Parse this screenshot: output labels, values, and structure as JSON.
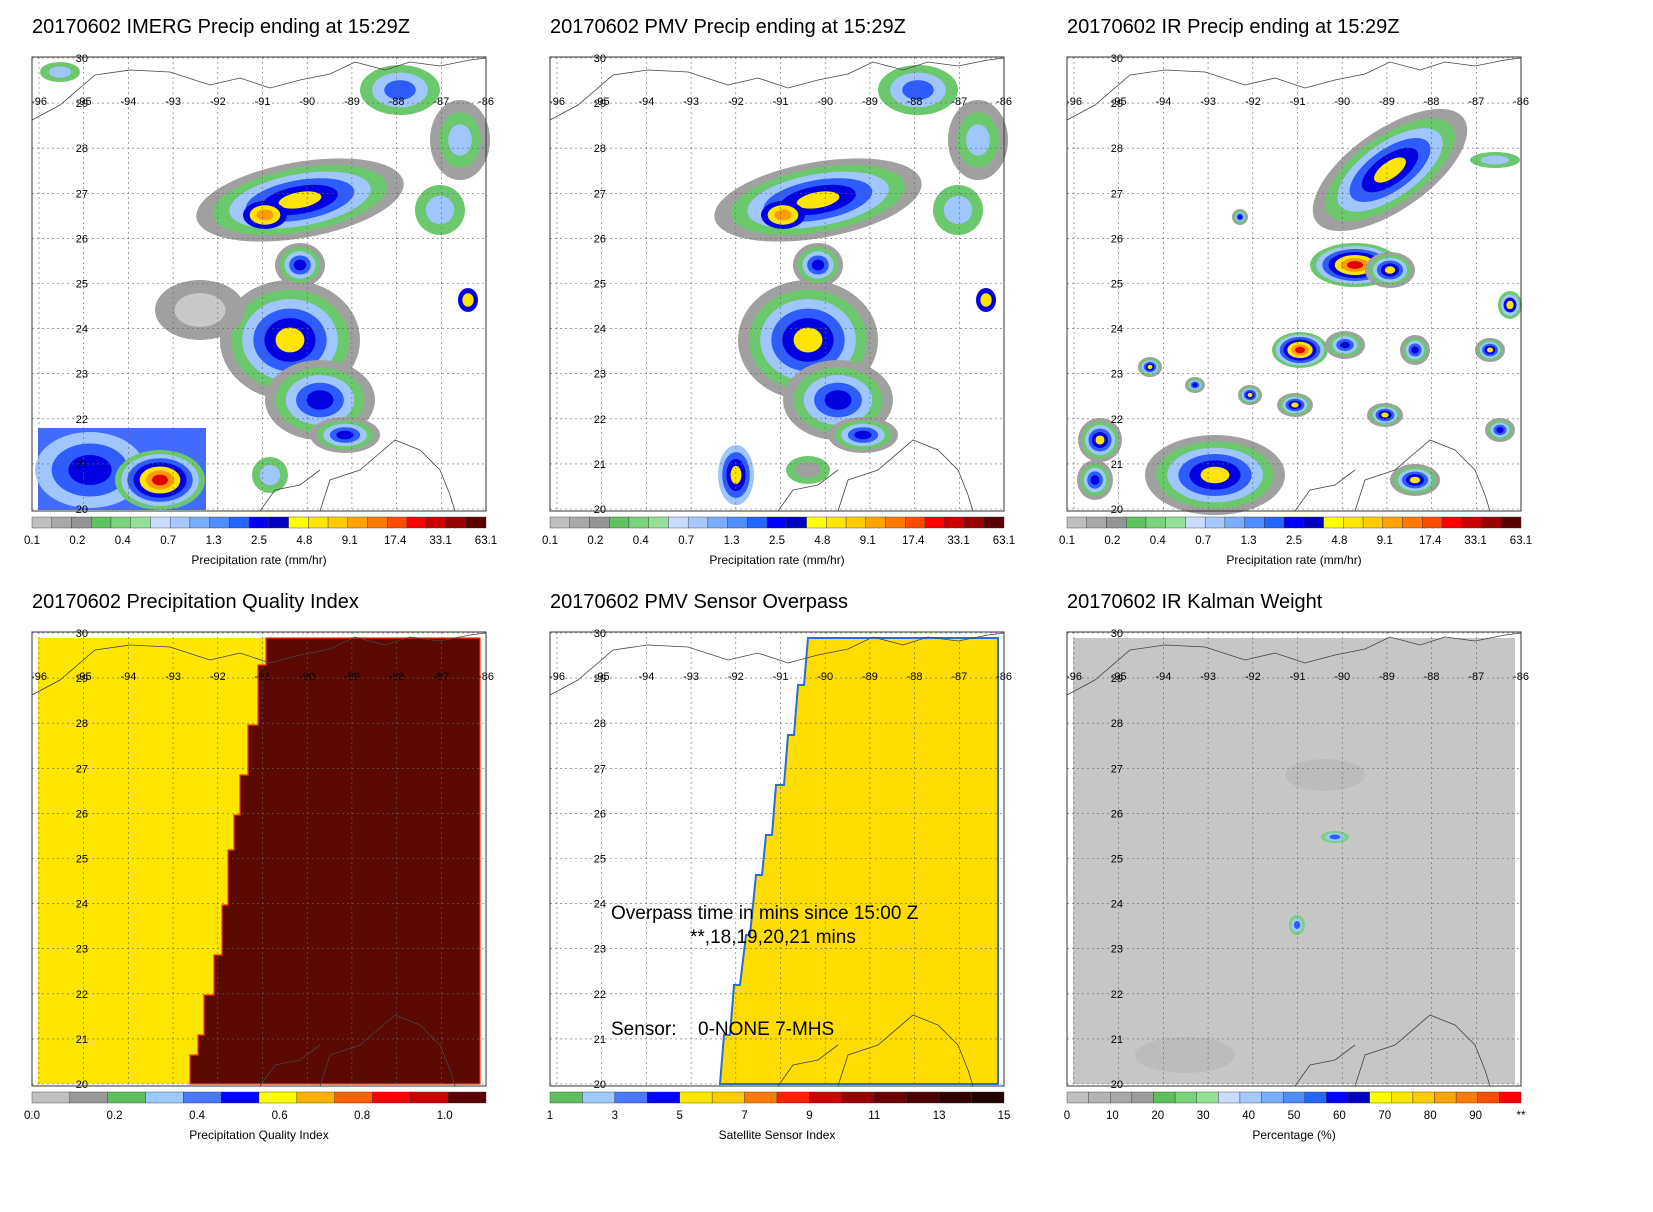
{
  "colors": {
    "precip_scale": [
      "#bfbfbf",
      "#a8a8a8",
      "#959595",
      "#5fc45f",
      "#7ad27a",
      "#94e094",
      "#c8dcff",
      "#a6c8ff",
      "#7aacff",
      "#4f8dff",
      "#2464ff",
      "#0000ff",
      "#0000c0",
      "#ffff00",
      "#ffe600",
      "#ffcc00",
      "#ffa300",
      "#ff7a00",
      "#ff4d00",
      "#ff0000",
      "#cc0000",
      "#990000",
      "#5a0000"
    ],
    "quality_scale": [
      "#c0c0c0",
      "#999999",
      "#5fbf5f",
      "#9ec9ff",
      "#4a78ff",
      "#0000ff",
      "#ffff00",
      "#ffb000",
      "#ff6000",
      "#ff0000",
      "#cc0000",
      "#5a0000"
    ],
    "sensor_scale": [
      "#5fbf5f",
      "#9ec9ff",
      "#4a78ff",
      "#0000ff",
      "#ffe600",
      "#ffcc00",
      "#ff7a00",
      "#ff2000",
      "#cc0000",
      "#990000",
      "#6a0000",
      "#4a0000",
      "#300000",
      "#200000"
    ],
    "weight_scale": [
      "#bfbfbf",
      "#b3b3b3",
      "#a8a8a8",
      "#9d9d9d",
      "#5fbf5f",
      "#7ad27a",
      "#94e094",
      "#c8dcff",
      "#a6c8ff",
      "#7aacff",
      "#4f8dff",
      "#2464ff",
      "#0000ff",
      "#0000c0",
      "#ffff00",
      "#ffe600",
      "#ffcc00",
      "#ffa300",
      "#ff7a00",
      "#ff4d00",
      "#ff0000"
    ],
    "quality_low": "#ffe600",
    "quality_high": "#5a0a00",
    "overpass_fill": "#ffdd00",
    "kalman_bg": "#c6c6c6"
  },
  "map": {
    "lon_ticks": [
      "-96",
      "-95",
      "-94",
      "-93",
      "-92",
      "-91",
      "-90",
      "-89",
      "-88",
      "-87",
      "-86"
    ],
    "lat_ticks": [
      "20",
      "21",
      "22",
      "23",
      "24",
      "25",
      "26",
      "27",
      "28",
      "29",
      "30"
    ],
    "lon_range": [
      -96,
      -86
    ],
    "lat_range": [
      20,
      30
    ]
  },
  "panels": [
    {
      "title": "20170602 IMERG Precip ending at 15:29Z",
      "colorbar": {
        "title": "Precipitation rate (mm/hr)",
        "labels": [
          "0.1",
          "0.2",
          "0.4",
          "0.7",
          "1.3",
          "2.5",
          "4.8",
          "9.1",
          "17.4",
          "33.1",
          "63.1"
        ]
      }
    },
    {
      "title": "20170602 PMV Precip ending at 15:29Z",
      "colorbar": {
        "title": "Precipitation rate (mm/hr)",
        "labels": [
          "0.1",
          "0.2",
          "0.4",
          "0.7",
          "1.3",
          "2.5",
          "4.8",
          "9.1",
          "17.4",
          "33.1",
          "63.1"
        ]
      }
    },
    {
      "title": "20170602 IR Precip ending at 15:29Z",
      "colorbar": {
        "title": "Precipitation rate (mm/hr)",
        "labels": [
          "0.1",
          "0.2",
          "0.4",
          "0.7",
          "1.3",
          "2.5",
          "4.8",
          "9.1",
          "17.4",
          "33.1",
          "63.1"
        ]
      }
    },
    {
      "title": "20170602 Precipitation Quality Index",
      "colorbar": {
        "title": "Precipitation Quality Index",
        "labels": [
          "0.0",
          "0.2",
          "0.4",
          "0.6",
          "0.8",
          "1.0"
        ]
      }
    },
    {
      "title": "20170602 PMV Sensor Overpass",
      "colorbar": {
        "title": "Satellite Sensor Index",
        "labels": [
          "1",
          "3",
          "5",
          "7",
          "9",
          "11",
          "13",
          "15"
        ]
      },
      "annotation": {
        "overpass_line1": "Overpass time in mins since 15:00 Z",
        "overpass_line2": "**,18,19,20,21 mins",
        "sensor_label": "Sensor:",
        "sensor_values": "0-NONE  7-MHS"
      }
    },
    {
      "title": "20170602 IR Kalman Weight",
      "colorbar": {
        "title": "Percentage (%)",
        "labels": [
          "0",
          "10",
          "20",
          "30",
          "40",
          "50",
          "60",
          "70",
          "80",
          "90",
          "**"
        ]
      }
    }
  ]
}
